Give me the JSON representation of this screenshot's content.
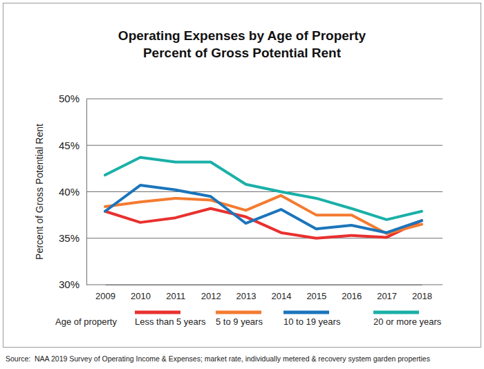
{
  "chart_data": {
    "type": "line",
    "title": "Operating Expenses by Age of Property",
    "subtitle": "Percent of Gross Potential Rent",
    "y_label": "Percent of Gross Potential Rent",
    "legend_title": "Age of property",
    "source": "Source:  NAA 2019 Survey of Operating Income & Expenses; market rate, individually metered & recovery system garden properties",
    "categories": [
      "2009",
      "2010",
      "2011",
      "2012",
      "2013",
      "2014",
      "2015",
      "2016",
      "2017",
      "2018"
    ],
    "series": [
      {
        "name": "Less than 5 years",
        "color": "#e8312f",
        "values": [
          37.9,
          36.7,
          37.2,
          38.2,
          37.3,
          35.6,
          35.0,
          35.3,
          35.1,
          36.9
        ]
      },
      {
        "name": "5 to 9 years",
        "color": "#f47b30",
        "values": [
          38.4,
          38.9,
          39.3,
          39.1,
          38.0,
          39.6,
          37.5,
          37.5,
          35.5,
          36.5
        ]
      },
      {
        "name": "10 to 19 years",
        "color": "#1b75bb",
        "values": [
          37.9,
          40.7,
          40.2,
          39.5,
          36.6,
          38.1,
          36.0,
          36.4,
          35.6,
          36.9
        ]
      },
      {
        "name": "20 or more years",
        "color": "#1ab0a8",
        "values": [
          41.8,
          43.7,
          43.2,
          43.2,
          40.8,
          40.0,
          39.3,
          38.2,
          37.0,
          37.9
        ]
      }
    ],
    "ylim": [
      30,
      50
    ],
    "yticks": [
      {
        "value": 30,
        "label": "30%"
      },
      {
        "value": 35,
        "label": "35%"
      },
      {
        "value": 40,
        "label": "40%"
      },
      {
        "value": 45,
        "label": "45%"
      },
      {
        "value": 50,
        "label": "50%"
      }
    ],
    "grid": true,
    "legend": "bottom"
  }
}
